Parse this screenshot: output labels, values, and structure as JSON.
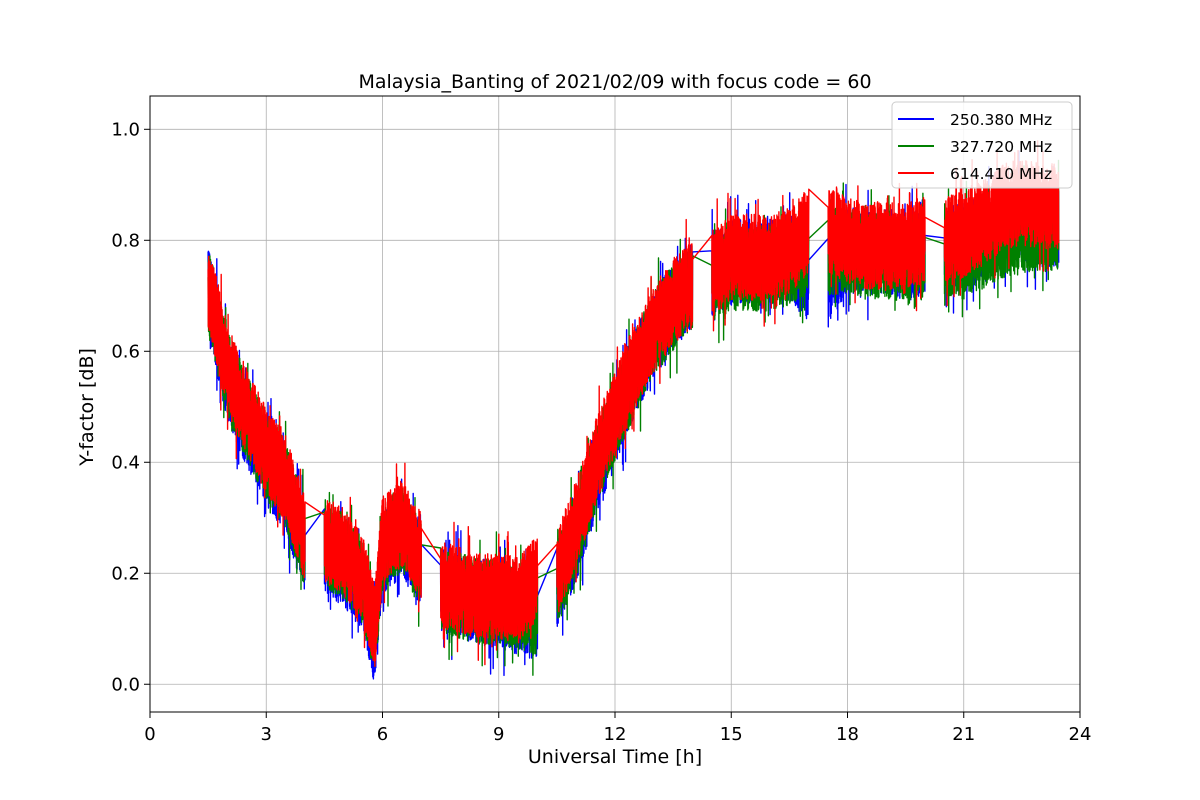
{
  "chart_data": {
    "type": "line",
    "title": "Malaysia_Banting of 2021/02/09 with focus code = 60",
    "xlabel": "Universal Time [h]",
    "ylabel": "Y-factor [dB]",
    "xlim": [
      0,
      24
    ],
    "ylim": [
      -0.05,
      1.06
    ],
    "xticks": [
      0,
      3,
      6,
      9,
      12,
      15,
      18,
      21,
      24
    ],
    "yticks": [
      0.0,
      0.2,
      0.4,
      0.6,
      0.8,
      1.0
    ],
    "xtick_labels": [
      "0",
      "3",
      "6",
      "9",
      "12",
      "15",
      "18",
      "21",
      "24"
    ],
    "ytick_labels": [
      "0.0",
      "0.2",
      "0.4",
      "0.6",
      "0.8",
      "1.0"
    ],
    "grid": true,
    "legend_position": "top-right",
    "series": [
      {
        "name": "250.380 MHz",
        "color": "#0000ff",
        "x": [
          1.5,
          2.0,
          2.5,
          3.0,
          3.5,
          4.0,
          4.5,
          5.0,
          5.5,
          5.8,
          6.0,
          6.5,
          7.0,
          7.5,
          8.0,
          8.5,
          9.0,
          9.5,
          10.0,
          10.5,
          11.0,
          11.5,
          12.0,
          12.5,
          13.0,
          13.5,
          14.0,
          14.5,
          15.0,
          15.5,
          16.0,
          16.5,
          17.0,
          17.5,
          18.0,
          18.5,
          19.0,
          19.5,
          20.0,
          20.5,
          21.0,
          21.5,
          22.0,
          22.5,
          23.0,
          23.4
        ],
        "y": [
          0.71,
          0.55,
          0.47,
          0.4,
          0.35,
          0.24,
          0.24,
          0.22,
          0.17,
          0.07,
          0.24,
          0.27,
          0.22,
          0.17,
          0.16,
          0.15,
          0.14,
          0.13,
          0.12,
          0.18,
          0.26,
          0.38,
          0.47,
          0.56,
          0.63,
          0.68,
          0.72,
          0.74,
          0.76,
          0.76,
          0.76,
          0.77,
          0.73,
          0.73,
          0.78,
          0.78,
          0.78,
          0.77,
          0.78,
          0.78,
          0.79,
          0.8,
          0.83,
          0.84,
          0.83,
          0.83
        ]
      },
      {
        "name": "327.720 MHz",
        "color": "#008000",
        "x": [
          1.5,
          2.0,
          2.5,
          3.0,
          3.5,
          4.0,
          4.5,
          5.0,
          5.5,
          5.8,
          6.0,
          6.5,
          7.0,
          7.5,
          8.0,
          8.5,
          9.0,
          9.5,
          10.0,
          10.5,
          11.0,
          11.5,
          12.0,
          12.5,
          13.0,
          13.5,
          14.0,
          14.5,
          15.0,
          15.5,
          16.0,
          16.5,
          17.0,
          17.5,
          18.0,
          18.5,
          19.0,
          19.5,
          20.0,
          20.5,
          21.0,
          21.5,
          22.0,
          22.5,
          23.0,
          23.4
        ],
        "y": [
          0.71,
          0.56,
          0.48,
          0.41,
          0.36,
          0.25,
          0.25,
          0.23,
          0.18,
          0.09,
          0.25,
          0.28,
          0.21,
          0.17,
          0.16,
          0.15,
          0.15,
          0.14,
          0.13,
          0.18,
          0.27,
          0.39,
          0.48,
          0.56,
          0.63,
          0.68,
          0.72,
          0.73,
          0.75,
          0.75,
          0.75,
          0.76,
          0.78,
          0.78,
          0.78,
          0.77,
          0.77,
          0.77,
          0.77,
          0.77,
          0.78,
          0.79,
          0.81,
          0.82,
          0.82,
          0.82
        ]
      },
      {
        "name": "614.410 MHz",
        "color": "#ff0000",
        "x": [
          1.5,
          2.0,
          2.5,
          3.0,
          3.5,
          4.0,
          4.5,
          5.0,
          5.5,
          5.8,
          6.0,
          6.5,
          7.0,
          7.5,
          8.0,
          8.5,
          9.0,
          9.5,
          10.0,
          10.5,
          11.0,
          11.5,
          12.0,
          12.5,
          13.0,
          13.5,
          14.0,
          14.5,
          15.0,
          15.5,
          16.0,
          16.5,
          17.0,
          17.5,
          18.0,
          18.5,
          19.0,
          19.5,
          20.0,
          20.5,
          21.0,
          21.5,
          22.0,
          22.5,
          23.0,
          23.4
        ],
        "y": [
          0.72,
          0.57,
          0.49,
          0.42,
          0.37,
          0.26,
          0.26,
          0.24,
          0.19,
          0.1,
          0.26,
          0.29,
          0.23,
          0.18,
          0.17,
          0.16,
          0.16,
          0.15,
          0.19,
          0.2,
          0.29,
          0.4,
          0.49,
          0.57,
          0.64,
          0.69,
          0.72,
          0.74,
          0.77,
          0.77,
          0.77,
          0.78,
          0.82,
          0.82,
          0.8,
          0.79,
          0.79,
          0.79,
          0.8,
          0.8,
          0.81,
          0.83,
          0.86,
          0.87,
          0.86,
          0.86
        ]
      }
    ]
  }
}
